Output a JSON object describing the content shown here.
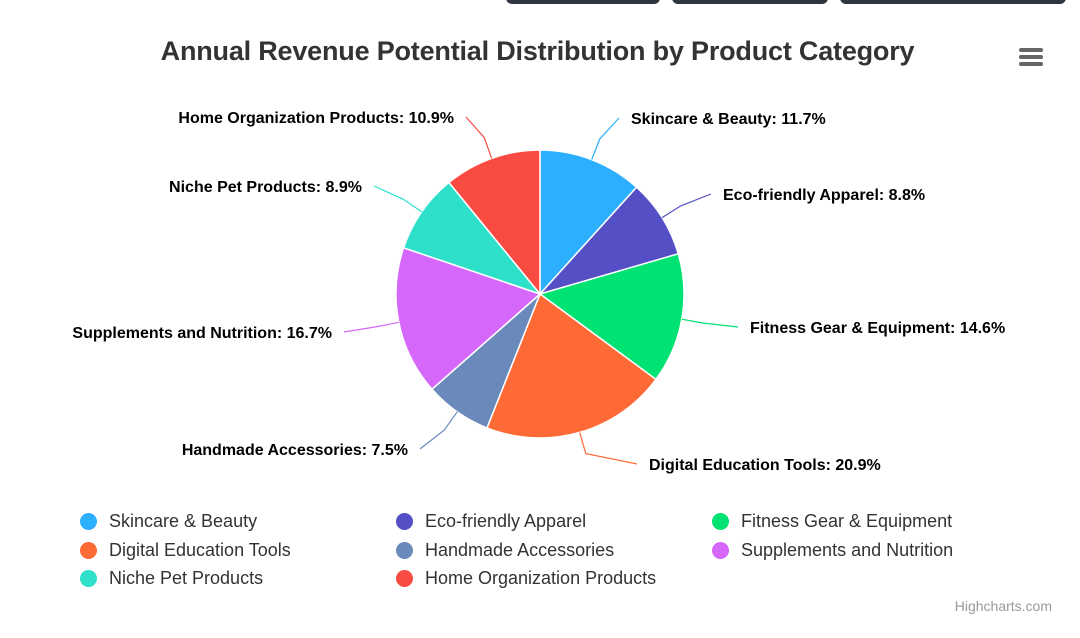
{
  "chart_data": {
    "type": "pie",
    "title": "Annual Revenue Potential Distribution by Product Category",
    "unit": "%",
    "slices": [
      {
        "name": "Skincare & Beauty",
        "value": 11.7,
        "color": "#2caffe"
      },
      {
        "name": "Eco-friendly Apparel",
        "value": 8.8,
        "color": "#544fc5"
      },
      {
        "name": "Fitness Gear & Equipment",
        "value": 14.6,
        "color": "#00e272"
      },
      {
        "name": "Digital Education Tools",
        "value": 20.9,
        "color": "#fe6a35"
      },
      {
        "name": "Handmade Accessories",
        "value": 7.5,
        "color": "#6b8abc"
      },
      {
        "name": "Supplements and Nutrition",
        "value": 16.7,
        "color": "#d568fb"
      },
      {
        "name": "Niche Pet Products",
        "value": 8.9,
        "color": "#2ee0ca"
      },
      {
        "name": "Home Organization Products",
        "value": 10.9,
        "color": "#fa4b42"
      }
    ],
    "legend": "bottom"
  },
  "menu": {
    "icon": "hamburger-menu-icon"
  },
  "credits": "Highcharts.com"
}
